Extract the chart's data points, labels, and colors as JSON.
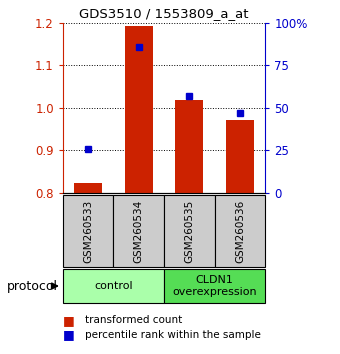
{
  "title": "GDS3510 / 1553809_a_at",
  "samples": [
    "GSM260533",
    "GSM260534",
    "GSM260535",
    "GSM260536"
  ],
  "red_values": [
    0.824,
    1.192,
    1.018,
    0.972
  ],
  "blue_values": [
    26,
    86,
    57,
    47
  ],
  "ylim_left": [
    0.8,
    1.2
  ],
  "ylim_right": [
    0,
    100
  ],
  "yticks_left": [
    0.8,
    0.9,
    1.0,
    1.1,
    1.2
  ],
  "yticks_right": [
    0,
    25,
    50,
    75,
    100
  ],
  "ytick_labels_right": [
    "0",
    "25",
    "50",
    "75",
    "100%"
  ],
  "bar_color": "#cc2200",
  "dot_color": "#0000cc",
  "bar_width": 0.55,
  "groups": [
    {
      "label": "control",
      "samples": [
        0,
        1
      ],
      "color": "#aaeea a"
    },
    {
      "label": "CLDN1\noverexpression",
      "samples": [
        2,
        3
      ],
      "color": "#55dd55"
    }
  ],
  "protocol_label": "protocol",
  "legend_red": "transformed count",
  "legend_blue": "percentile rank within the sample",
  "left_axis_color": "#cc2200",
  "right_axis_color": "#0000cc",
  "control_color": "#aaffaa",
  "overexp_color": "#55dd55"
}
